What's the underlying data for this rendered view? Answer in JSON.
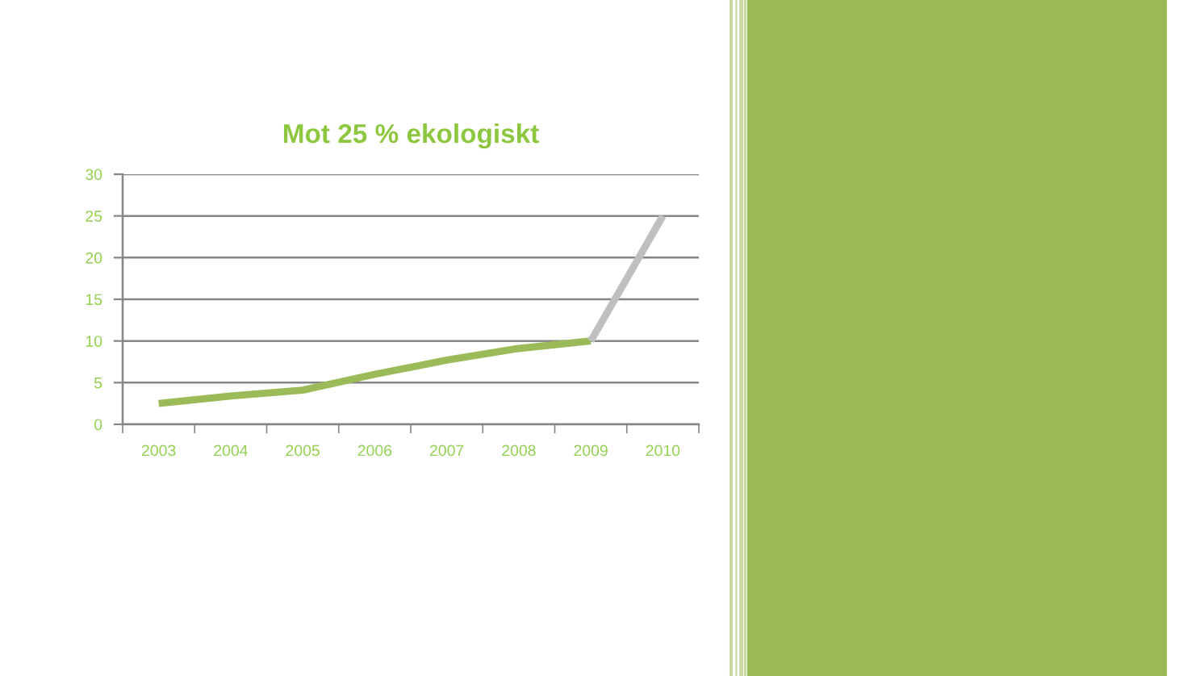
{
  "chart_data": {
    "type": "line",
    "title": "Mot 25 % ekologiskt",
    "categories": [
      "2003",
      "2004",
      "2005",
      "2006",
      "2007",
      "2008",
      "2009",
      "2010"
    ],
    "series": [
      {
        "color": "#9bbb59",
        "values": [
          2.5,
          3.4,
          4.1,
          6.0,
          7.7,
          9.1,
          10,
          null
        ]
      },
      {
        "color": "#bfbfbf",
        "values": [
          null,
          null,
          null,
          null,
          null,
          null,
          10,
          25
        ]
      }
    ],
    "ylim": [
      0,
      30
    ],
    "yticks": [
      0,
      5,
      10,
      15,
      20,
      25,
      30
    ],
    "grid": "y"
  }
}
